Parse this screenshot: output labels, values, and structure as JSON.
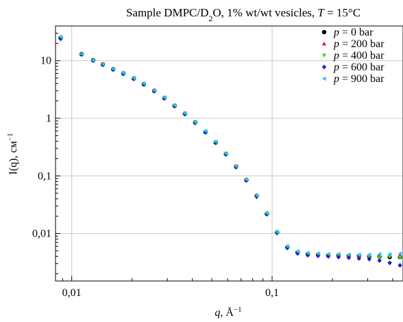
{
  "chart_data": {
    "type": "scatter",
    "title_parts": {
      "a": "Sample DMPC/D",
      "sub": "2",
      "b": "O, 1% wt/wt vesicles, ",
      "t_symbol": "T",
      "c": " = 15°C"
    },
    "xlabel": {
      "symbol": "q",
      "sep": ", Å",
      "sup": "−1"
    },
    "ylabel": {
      "main": "I(q), см",
      "sup": "−1"
    },
    "x_scale": "log",
    "y_scale": "log",
    "xlim": [
      0.0083,
      0.45
    ],
    "ylim": [
      0.0015,
      40
    ],
    "x_ticks": [
      {
        "value": 0.01,
        "label": "0,01"
      },
      {
        "value": 0.1,
        "label": "0,1"
      }
    ],
    "y_ticks": [
      {
        "value": 0.01,
        "label": "0,01"
      },
      {
        "value": 0.1,
        "label": "0,1"
      },
      {
        "value": 1,
        "label": "1"
      },
      {
        "value": 10,
        "label": "10"
      }
    ],
    "grid": true,
    "legend_position": "top-right",
    "series": [
      {
        "name": "p = 0 bar",
        "label_symbol": "p",
        "label_rest": " = 0 bar",
        "color": "#000000",
        "marker": "circle",
        "x": [
          0.0088,
          0.0112,
          0.0128,
          0.0143,
          0.0161,
          0.0181,
          0.0204,
          0.0229,
          0.0258,
          0.029,
          0.0326,
          0.0367,
          0.0413,
          0.0465,
          0.0523,
          0.0588,
          0.0661,
          0.0744,
          0.0837,
          0.0941,
          0.1059,
          0.1191,
          0.134,
          0.1507,
          0.1695,
          0.1907,
          0.2145,
          0.2413,
          0.2715,
          0.3054,
          0.3435,
          0.3864,
          0.4347
        ],
        "y": [
          25,
          13,
          10.2,
          8.6,
          7.1,
          6.0,
          4.9,
          3.9,
          3.0,
          2.25,
          1.65,
          1.2,
          0.85,
          0.58,
          0.38,
          0.24,
          0.145,
          0.085,
          0.045,
          0.022,
          0.0105,
          0.0058,
          0.0047,
          0.0044,
          0.0043,
          0.0042,
          0.0042,
          0.0041,
          0.0041,
          0.004,
          0.004,
          0.0039,
          0.0039
        ]
      },
      {
        "name": "p = 200 bar",
        "label_symbol": "p",
        "label_rest": " = 200 bar",
        "color": "#e8202a",
        "marker": "triangle-up",
        "x": [
          0.0088,
          0.0112,
          0.0128,
          0.0143,
          0.0161,
          0.0181,
          0.0204,
          0.0229,
          0.0258,
          0.029,
          0.0326,
          0.0367,
          0.0413,
          0.0465,
          0.0523,
          0.0588,
          0.0661,
          0.0744,
          0.0837,
          0.0941,
          0.1059,
          0.1191,
          0.134,
          0.1507,
          0.1695,
          0.1907,
          0.2145,
          0.2413,
          0.2715,
          0.3054,
          0.3435,
          0.3864,
          0.4347
        ],
        "y": [
          25,
          13,
          10.3,
          8.7,
          7.2,
          6.1,
          5.0,
          4.0,
          3.05,
          2.3,
          1.68,
          1.22,
          0.86,
          0.59,
          0.39,
          0.245,
          0.148,
          0.087,
          0.046,
          0.0225,
          0.0107,
          0.0059,
          0.0048,
          0.0045,
          0.0044,
          0.0043,
          0.0043,
          0.0042,
          0.0041,
          0.0041,
          0.004,
          0.0041,
          0.0042
        ]
      },
      {
        "name": "p = 400 bar",
        "label_symbol": "p",
        "label_rest": " = 400 bar",
        "color": "#3ed63e",
        "marker": "triangle-down",
        "x": [
          0.0088,
          0.0112,
          0.0128,
          0.0143,
          0.0161,
          0.0181,
          0.0204,
          0.0229,
          0.0258,
          0.029,
          0.0326,
          0.0367,
          0.0413,
          0.0465,
          0.0523,
          0.0588,
          0.0661,
          0.0744,
          0.0837,
          0.0941,
          0.1059,
          0.1191,
          0.134,
          0.1507,
          0.1695,
          0.1907,
          0.2145,
          0.2413,
          0.2715,
          0.3054,
          0.3435,
          0.3864,
          0.4347
        ],
        "y": [
          25,
          12.9,
          10.1,
          8.6,
          7.1,
          6.0,
          4.9,
          3.95,
          3.0,
          2.27,
          1.66,
          1.21,
          0.85,
          0.58,
          0.385,
          0.242,
          0.146,
          0.086,
          0.042,
          0.0222,
          0.0106,
          0.0058,
          0.0047,
          0.0044,
          0.0043,
          0.0042,
          0.0042,
          0.0041,
          0.0041,
          0.004,
          0.0039,
          0.004,
          0.0038
        ]
      },
      {
        "name": "p = 600 bar",
        "label_symbol": "p",
        "label_rest": " = 600 bar",
        "color": "#2020c8",
        "marker": "diamond",
        "x": [
          0.0088,
          0.0112,
          0.0128,
          0.0143,
          0.0161,
          0.0181,
          0.0204,
          0.0229,
          0.0258,
          0.029,
          0.0326,
          0.0367,
          0.0413,
          0.0465,
          0.0523,
          0.0588,
          0.0661,
          0.0744,
          0.0837,
          0.0941,
          0.1059,
          0.1191,
          0.134,
          0.1507,
          0.1695,
          0.1907,
          0.2145,
          0.2413,
          0.2715,
          0.3054,
          0.3435,
          0.3864,
          0.4347
        ],
        "y": [
          24,
          12.8,
          10.0,
          8.5,
          7.0,
          5.9,
          4.85,
          3.9,
          2.95,
          2.22,
          1.62,
          1.18,
          0.83,
          0.57,
          0.375,
          0.236,
          0.142,
          0.083,
          0.044,
          0.0216,
          0.0102,
          0.0056,
          0.0045,
          0.0042,
          0.0041,
          0.004,
          0.0039,
          0.0038,
          0.0037,
          0.0036,
          0.0034,
          0.0031,
          0.0028
        ]
      },
      {
        "name": "p = 900 bar",
        "label_symbol": "p",
        "label_rest": " = 900 bar",
        "color": "#29c4f0",
        "marker": "triangle-left",
        "x": [
          0.0088,
          0.0112,
          0.0128,
          0.0143,
          0.0161,
          0.0181,
          0.0204,
          0.0229,
          0.0258,
          0.029,
          0.0326,
          0.0367,
          0.0413,
          0.0465,
          0.0523,
          0.0588,
          0.0661,
          0.0744,
          0.0837,
          0.0941,
          0.1059,
          0.1191,
          0.134,
          0.1507,
          0.1695,
          0.1907,
          0.2145,
          0.2413,
          0.2715,
          0.3054,
          0.3435,
          0.3864,
          0.4347
        ],
        "y": [
          26,
          13.1,
          10.2,
          8.7,
          7.2,
          6.1,
          5.0,
          4.0,
          3.05,
          2.3,
          1.68,
          1.22,
          0.86,
          0.6,
          0.39,
          0.245,
          0.148,
          0.087,
          0.046,
          0.0225,
          0.0107,
          0.006,
          0.0049,
          0.0046,
          0.0045,
          0.0044,
          0.0044,
          0.0043,
          0.0043,
          0.0043,
          0.0044,
          0.0044,
          0.0045
        ]
      }
    ]
  }
}
